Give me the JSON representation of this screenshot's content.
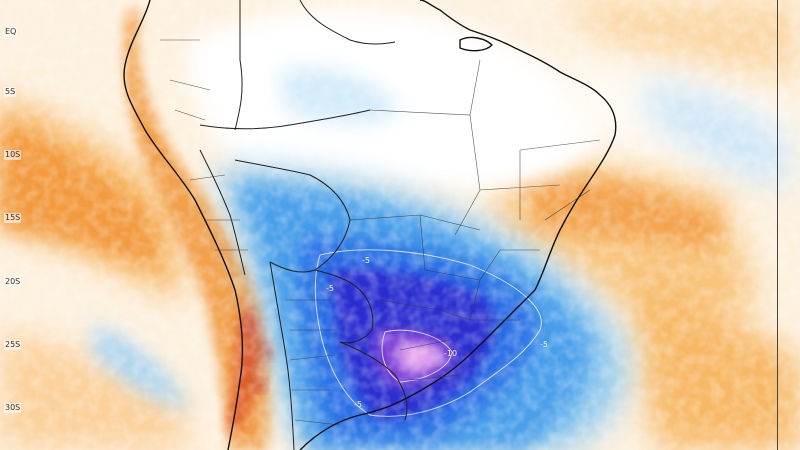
{
  "map": {
    "lat_labels": [
      "EQ",
      "5S",
      "10S",
      "15S",
      "20S",
      "25S",
      "30S"
    ],
    "contour_labels": [
      "-5",
      "-5",
      "-5",
      "-10",
      "-5"
    ],
    "colors": {
      "warm_light": "#fde9cf",
      "warm_mid": "#f9c88a",
      "warm_strong": "#f3a34e",
      "hot": "#e86a2a",
      "hot_red": "#d8391d",
      "neutral": "#ffffff",
      "cool_light": "#cfe8f8",
      "cool_mid": "#7fc4ee",
      "cool_strong": "#3d8ee8",
      "cold": "#1f4fe0",
      "very_cold": "#2b1fc8",
      "extreme_cold": "#8a3fd6",
      "extreme_core": "#e7a8ee",
      "border_national": "#111111",
      "border_state": "#333333",
      "contour": "#e8eefc"
    }
  }
}
